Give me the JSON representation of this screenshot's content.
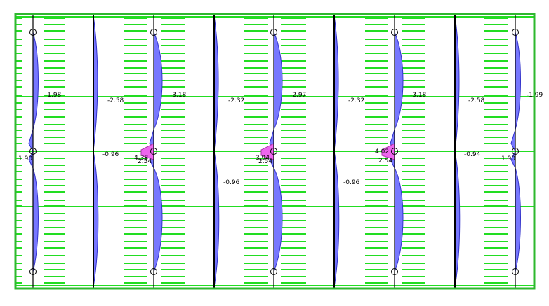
{
  "colors": {
    "frame": "#2eb82e",
    "grid_line": "#22dd22",
    "column_line": "#000000",
    "moment_fill": "#7777ff",
    "moment_outline": "#3333cc",
    "moment_pink": "#ee66ee",
    "support": "#000000"
  },
  "columns": [
    {
      "name": "col-1",
      "curve": "wave",
      "labels": [
        {
          "name": "moment-label-c1-top",
          "text": "-1.98"
        },
        {
          "name": "moment-label-c1-mid",
          "text": "1.90"
        }
      ]
    },
    {
      "name": "col-2",
      "curve": "flat",
      "labels": [
        {
          "name": "moment-label-c2-top",
          "text": "-2.58"
        },
        {
          "name": "moment-label-c2-mid",
          "text": "-0.96"
        }
      ]
    },
    {
      "name": "col-3",
      "curve": "wave",
      "labels": [
        {
          "name": "moment-label-c3-top",
          "text": "-3.18"
        },
        {
          "name": "moment-label-c3-mid1",
          "text": "4.38"
        },
        {
          "name": "moment-label-c3-mid2",
          "text": "2.54"
        }
      ]
    },
    {
      "name": "col-4",
      "curve": "flat",
      "labels": [
        {
          "name": "moment-label-c4-top",
          "text": "-2.32"
        },
        {
          "name": "moment-label-c4-mid",
          "text": "-0.96"
        }
      ]
    },
    {
      "name": "col-5",
      "curve": "wave",
      "labels": [
        {
          "name": "moment-label-c5-top",
          "text": "-2.97"
        },
        {
          "name": "moment-label-c5-mid1",
          "text": "3.94"
        },
        {
          "name": "moment-label-c5-mid2",
          "text": "2.54"
        }
      ]
    },
    {
      "name": "col-6",
      "curve": "flat",
      "labels": [
        {
          "name": "moment-label-c6-top",
          "text": "-2.32"
        },
        {
          "name": "moment-label-c6-mid",
          "text": "-0.96"
        }
      ]
    },
    {
      "name": "col-7",
      "curve": "wave",
      "labels": [
        {
          "name": "moment-label-c7-top",
          "text": "-3.18"
        },
        {
          "name": "moment-label-c7-mid1",
          "text": "4.02"
        },
        {
          "name": "moment-label-c7-mid2",
          "text": "2.54"
        }
      ]
    },
    {
      "name": "col-8",
      "curve": "flat",
      "labels": [
        {
          "name": "moment-label-c8-top",
          "text": "-2.58"
        },
        {
          "name": "moment-label-c8-mid",
          "text": "-0.94"
        }
      ]
    },
    {
      "name": "col-9",
      "curve": "wave",
      "labels": [
        {
          "name": "moment-label-c9-top",
          "text": "-1.99"
        },
        {
          "name": "moment-label-c9-mid",
          "text": "1.90"
        }
      ]
    }
  ]
}
